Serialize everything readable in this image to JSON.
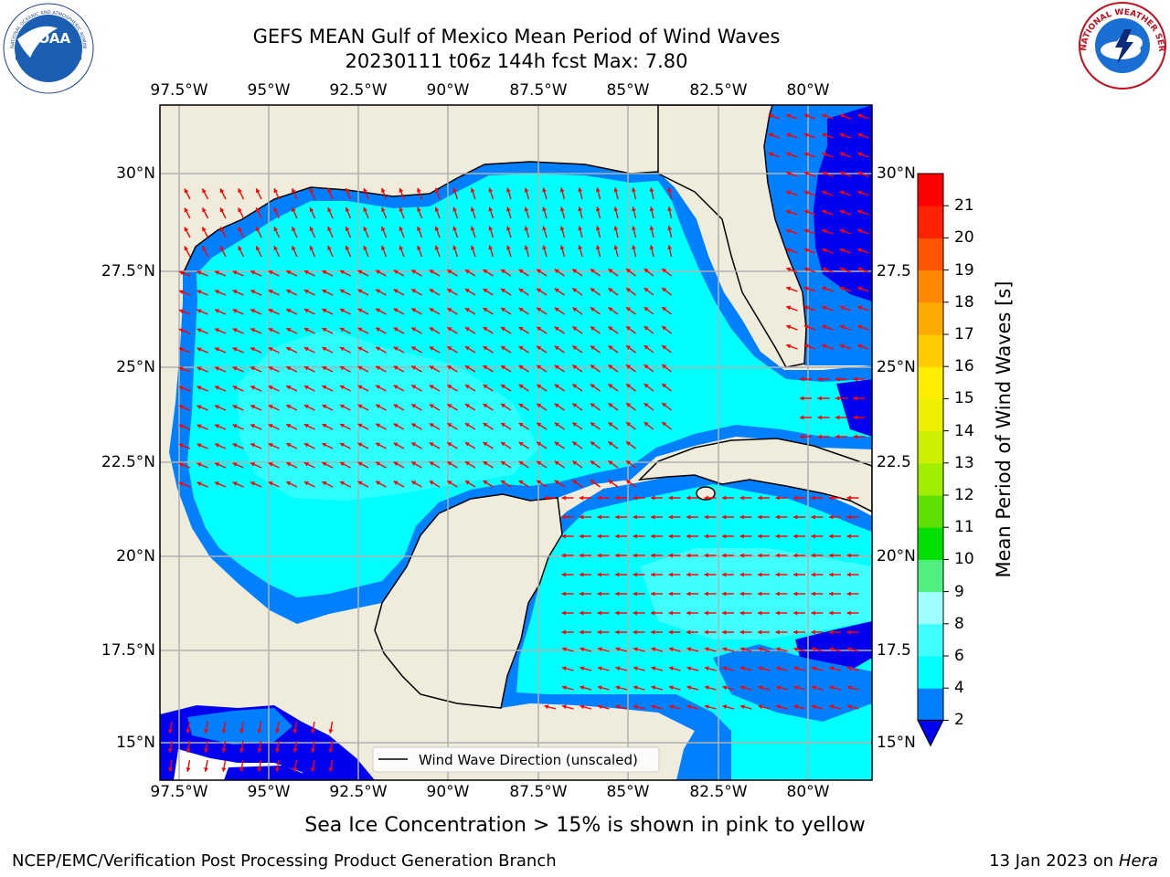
{
  "title_line1": "GEFS MEAN Gulf of Mexico Mean Period of Wind Waves",
  "title_line2": "20230111 t06z 144h fcst   Max: 7.80",
  "lon_ticks": [
    "97.5°W",
    "95°W",
    "92.5°W",
    "90°W",
    "87.5°W",
    "85°W",
    "82.5°W",
    "80°W"
  ],
  "lat_ticks_left": [
    "30°N",
    "27.5°N",
    "25°N",
    "22.5°N",
    "20°N",
    "17.5°N",
    "15°N"
  ],
  "lat_ticks_right": [
    "30°N",
    "27.5",
    "25°N",
    "22.5",
    "20°N",
    "17.5",
    "15°N"
  ],
  "legend_label": "Wind Wave Direction (unscaled)",
  "colorbar": {
    "label": "Mean Period of Wind Waves [s]",
    "ticks": [
      "2",
      "4",
      "6",
      "8",
      "9",
      "10",
      "11",
      "12",
      "13",
      "14",
      "15",
      "16",
      "17",
      "18",
      "19",
      "20",
      "21"
    ],
    "colors": [
      "#0000ee",
      "#0080ff",
      "#00ffff",
      "#40ffff",
      "#a0ffff",
      "#50f080",
      "#00e000",
      "#60e000",
      "#a0ee00",
      "#ccf000",
      "#eef000",
      "#ffee00",
      "#ffcc00",
      "#ffaa00",
      "#ff8800",
      "#ff5500",
      "#ff2200",
      "#ff0000"
    ]
  },
  "colors": {
    "land": "#efecdc",
    "ocean_period_4_6": "#00ffff",
    "ocean_period_2_4": "#0080ff",
    "ocean_period_below_2": "#0000ee",
    "arrows": "#ff0000",
    "grid": "#b0b0b0"
  },
  "sea_ice_note": "Sea Ice Concentration > 15% is shown in pink to yellow",
  "footer_left": "NCEP/EMC/Verification Post Processing Product Generation Branch",
  "footer_date": "13 Jan 2023 on",
  "footer_host": "Hera",
  "logos": {
    "noaa": "NOAA",
    "noaa_ring": "NATIONAL OCEANIC AND ATMOSPHERIC ADMINISTRATION · U.S. DEPARTMENT OF COMMERCE",
    "nws": "NATIONAL WEATHER SERVICE"
  }
}
